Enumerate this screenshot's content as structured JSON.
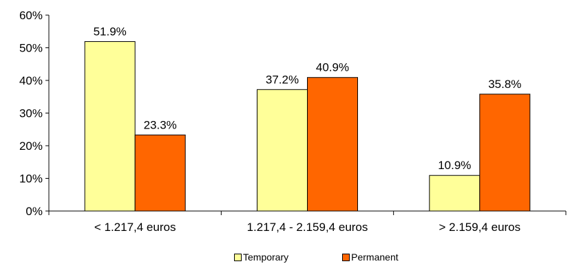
{
  "chart_data": {
    "type": "bar",
    "categories": [
      "< 1.217,4 euros",
      "1.217,4 - 2.159,4 euros",
      "> 2.159,4 euros"
    ],
    "series": [
      {
        "name": "Temporary",
        "values": [
          51.9,
          37.2,
          10.9
        ],
        "color": "#FFFF99"
      },
      {
        "name": "Permanent",
        "values": [
          23.3,
          40.9,
          35.8
        ],
        "color": "#FF6600"
      }
    ],
    "data_labels": {
      "Temporary": [
        "51.9%",
        "37.2%",
        "10.9%"
      ],
      "Permanent": [
        "23.3%",
        "40.9%",
        "35.8%"
      ]
    },
    "ylim": [
      0,
      60
    ],
    "yticks": [
      "0%",
      "10%",
      "20%",
      "30%",
      "40%",
      "50%",
      "60%"
    ],
    "grid": false,
    "legend_position": "bottom"
  }
}
